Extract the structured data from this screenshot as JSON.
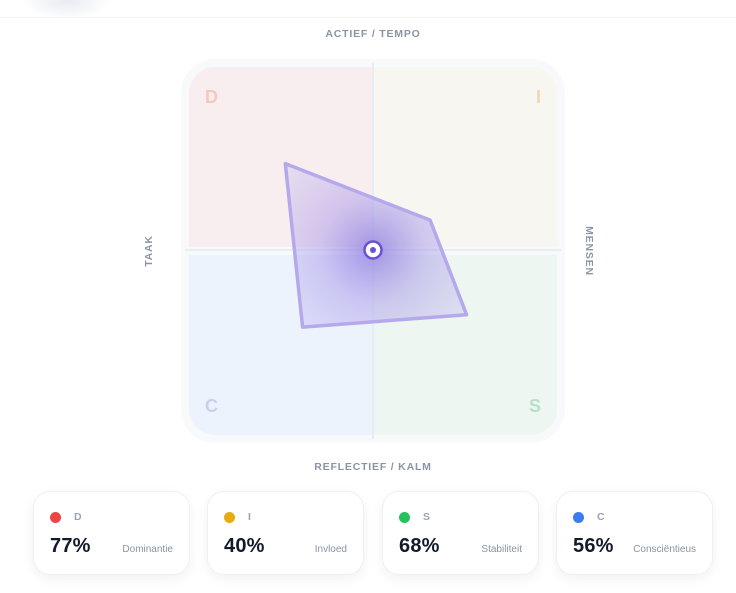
{
  "axes": {
    "top": "ACTIEF / TEMPO",
    "bottom": "REFLECTIEF / KALM",
    "left": "TAAK",
    "right": "MENSEN"
  },
  "quadrants": {
    "D": {
      "letter": "D",
      "color": "#f4c9bb"
    },
    "I": {
      "letter": "I",
      "color": "#f3d6b3"
    },
    "C": {
      "letter": "C",
      "color": "#c8d1ec"
    },
    "S": {
      "letter": "S",
      "color": "#b6e0c9"
    }
  },
  "chart_data": {
    "type": "radar",
    "axes": [
      "D",
      "I",
      "S",
      "C"
    ],
    "values": [
      77,
      40,
      68,
      56
    ],
    "range": [
      0,
      100
    ],
    "fill_color": "#8b7ae0",
    "stroke_color": "#b5a9ec"
  },
  "cards": [
    {
      "letter": "D",
      "value": "77%",
      "name": "Dominantie",
      "color": "#ec4545"
    },
    {
      "letter": "I",
      "value": "40%",
      "name": "Invloed",
      "color": "#e6ac11"
    },
    {
      "letter": "S",
      "value": "68%",
      "name": "Stabiliteit",
      "color": "#22c25e"
    },
    {
      "letter": "C",
      "value": "56%",
      "name": "Consciëntieus",
      "color": "#3d7bf0"
    }
  ]
}
